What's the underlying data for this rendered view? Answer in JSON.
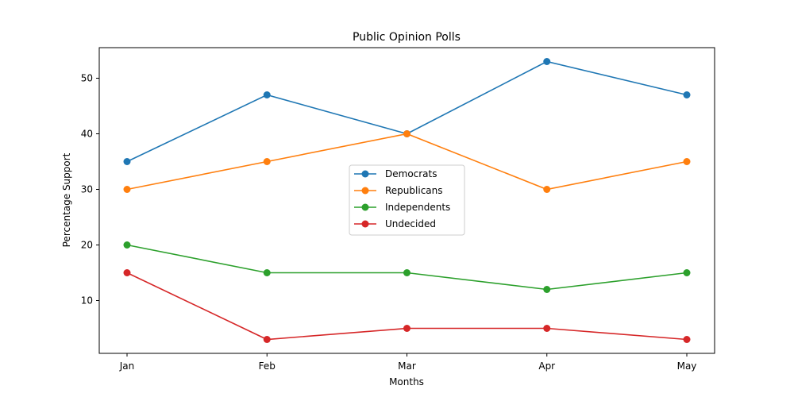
{
  "chart_data": {
    "type": "line",
    "title": "Public Opinion Polls",
    "xlabel": "Months",
    "ylabel": "Percentage Support",
    "categories": [
      "Jan",
      "Feb",
      "Mar",
      "Apr",
      "May"
    ],
    "ylim": [
      0.5,
      55.5
    ],
    "yticks": [
      10,
      20,
      30,
      40,
      50
    ],
    "grid": false,
    "legend_position": "center",
    "series": [
      {
        "name": "Democrats",
        "color": "#1f77b4",
        "values": [
          35,
          47,
          40,
          53,
          47
        ]
      },
      {
        "name": "Republicans",
        "color": "#ff7f0e",
        "values": [
          30,
          35,
          40,
          30,
          35
        ]
      },
      {
        "name": "Independents",
        "color": "#2ca02c",
        "values": [
          20,
          15,
          15,
          12,
          15
        ]
      },
      {
        "name": "Undecided",
        "color": "#d62728",
        "values": [
          15,
          3,
          5,
          5,
          3
        ]
      }
    ]
  }
}
